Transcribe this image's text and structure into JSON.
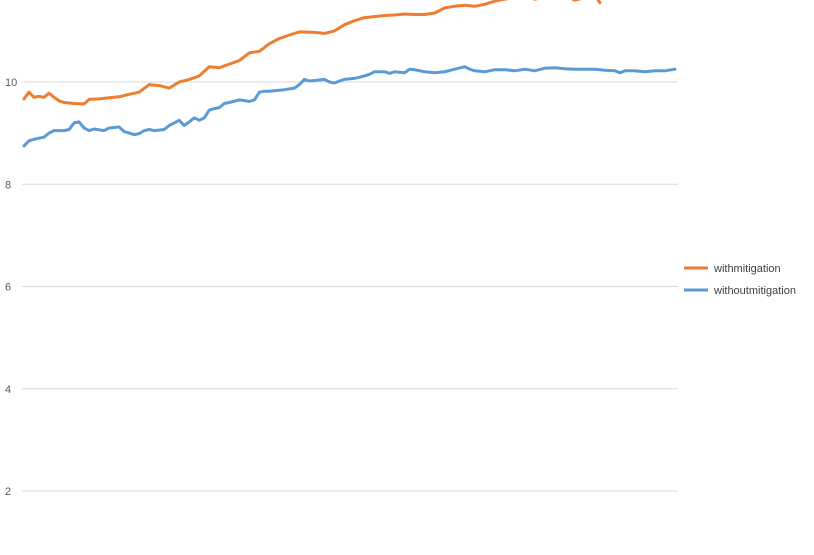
{
  "chart_data": {
    "type": "line",
    "title": "",
    "xlabel": "",
    "ylabel": "",
    "ylim": [
      0,
      11.6
    ],
    "yticks": [
      2,
      4,
      6,
      8,
      10
    ],
    "grid": true,
    "legend_position": "right",
    "colors": {
      "gridline": "#d9d9d9",
      "tick_label": "#595959",
      "legend_text": "#404040"
    },
    "series": [
      {
        "name": "withmitigation",
        "color": "#ed7d31",
        "points": [
          [
            0,
            9.67
          ],
          [
            5,
            9.8
          ],
          [
            10,
            9.7
          ],
          [
            15,
            9.72
          ],
          [
            20,
            9.7
          ],
          [
            25,
            9.78
          ],
          [
            30,
            9.7
          ],
          [
            35,
            9.63
          ],
          [
            40,
            9.6
          ],
          [
            50,
            9.58
          ],
          [
            60,
            9.57
          ],
          [
            65,
            9.66
          ],
          [
            75,
            9.67
          ],
          [
            85,
            9.69
          ],
          [
            95,
            9.71
          ],
          [
            105,
            9.76
          ],
          [
            115,
            9.8
          ],
          [
            125,
            9.95
          ],
          [
            135,
            9.93
          ],
          [
            145,
            9.88
          ],
          [
            155,
            10.0
          ],
          [
            165,
            10.05
          ],
          [
            175,
            10.12
          ],
          [
            185,
            10.3
          ],
          [
            195,
            10.28
          ],
          [
            205,
            10.35
          ],
          [
            215,
            10.42
          ],
          [
            225,
            10.57
          ],
          [
            235,
            10.6
          ],
          [
            245,
            10.75
          ],
          [
            255,
            10.85
          ],
          [
            265,
            10.92
          ],
          [
            275,
            10.98
          ],
          [
            290,
            10.97
          ],
          [
            300,
            10.95
          ],
          [
            310,
            11.0
          ],
          [
            320,
            11.12
          ],
          [
            330,
            11.2
          ],
          [
            340,
            11.26
          ],
          [
            350,
            11.28
          ],
          [
            360,
            11.3
          ],
          [
            370,
            11.31
          ],
          [
            380,
            11.33
          ],
          [
            390,
            11.32
          ],
          [
            400,
            11.32
          ],
          [
            410,
            11.35
          ],
          [
            420,
            11.45
          ],
          [
            430,
            11.48
          ],
          [
            440,
            11.5
          ],
          [
            450,
            11.48
          ],
          [
            460,
            11.52
          ],
          [
            470,
            11.58
          ],
          [
            480,
            11.62
          ],
          [
            490,
            11.65
          ],
          [
            500,
            11.7
          ],
          [
            510,
            11.62
          ],
          [
            520,
            11.66
          ],
          [
            530,
            11.63
          ],
          [
            540,
            11.7
          ],
          [
            550,
            11.6
          ],
          [
            560,
            11.65
          ],
          [
            570,
            11.7
          ],
          [
            575,
            11.55
          ]
        ]
      },
      {
        "name": "withoutmitigation",
        "color": "#5b9bd5",
        "points": [
          [
            0,
            8.75
          ],
          [
            5,
            8.85
          ],
          [
            10,
            8.88
          ],
          [
            15,
            8.9
          ],
          [
            20,
            8.92
          ],
          [
            25,
            9.0
          ],
          [
            30,
            9.05
          ],
          [
            40,
            9.05
          ],
          [
            45,
            9.07
          ],
          [
            50,
            9.2
          ],
          [
            55,
            9.22
          ],
          [
            60,
            9.1
          ],
          [
            65,
            9.05
          ],
          [
            70,
            9.08
          ],
          [
            80,
            9.05
          ],
          [
            85,
            9.1
          ],
          [
            95,
            9.12
          ],
          [
            100,
            9.03
          ],
          [
            105,
            9.0
          ],
          [
            110,
            8.97
          ],
          [
            115,
            8.99
          ],
          [
            120,
            9.05
          ],
          [
            125,
            9.07
          ],
          [
            130,
            9.05
          ],
          [
            140,
            9.07
          ],
          [
            145,
            9.15
          ],
          [
            150,
            9.2
          ],
          [
            155,
            9.25
          ],
          [
            160,
            9.15
          ],
          [
            165,
            9.22
          ],
          [
            170,
            9.3
          ],
          [
            175,
            9.25
          ],
          [
            180,
            9.3
          ],
          [
            185,
            9.45
          ],
          [
            190,
            9.48
          ],
          [
            195,
            9.5
          ],
          [
            200,
            9.58
          ],
          [
            205,
            9.6
          ],
          [
            215,
            9.65
          ],
          [
            225,
            9.62
          ],
          [
            230,
            9.65
          ],
          [
            235,
            9.8
          ],
          [
            240,
            9.82
          ],
          [
            245,
            9.82
          ],
          [
            250,
            9.83
          ],
          [
            260,
            9.85
          ],
          [
            270,
            9.88
          ],
          [
            275,
            9.95
          ],
          [
            280,
            10.05
          ],
          [
            285,
            10.02
          ],
          [
            290,
            10.03
          ],
          [
            300,
            10.05
          ],
          [
            305,
            10.0
          ],
          [
            310,
            9.98
          ],
          [
            315,
            10.02
          ],
          [
            320,
            10.05
          ],
          [
            330,
            10.07
          ],
          [
            340,
            10.12
          ],
          [
            345,
            10.15
          ],
          [
            350,
            10.2
          ],
          [
            360,
            10.2
          ],
          [
            365,
            10.17
          ],
          [
            370,
            10.2
          ],
          [
            380,
            10.18
          ],
          [
            385,
            10.25
          ],
          [
            390,
            10.24
          ],
          [
            400,
            10.2
          ],
          [
            410,
            10.18
          ],
          [
            420,
            10.2
          ],
          [
            430,
            10.25
          ],
          [
            440,
            10.3
          ],
          [
            445,
            10.25
          ],
          [
            450,
            10.22
          ],
          [
            460,
            10.2
          ],
          [
            470,
            10.24
          ],
          [
            480,
            10.24
          ],
          [
            490,
            10.22
          ],
          [
            500,
            10.25
          ],
          [
            510,
            10.22
          ],
          [
            520,
            10.27
          ],
          [
            530,
            10.28
          ],
          [
            540,
            10.26
          ],
          [
            550,
            10.25
          ],
          [
            560,
            10.25
          ],
          [
            570,
            10.25
          ],
          [
            580,
            10.23
          ],
          [
            590,
            10.22
          ],
          [
            595,
            10.18
          ],
          [
            600,
            10.22
          ],
          [
            610,
            10.22
          ],
          [
            620,
            10.2
          ],
          [
            630,
            10.22
          ],
          [
            640,
            10.22
          ],
          [
            650,
            10.25
          ]
        ]
      }
    ]
  }
}
